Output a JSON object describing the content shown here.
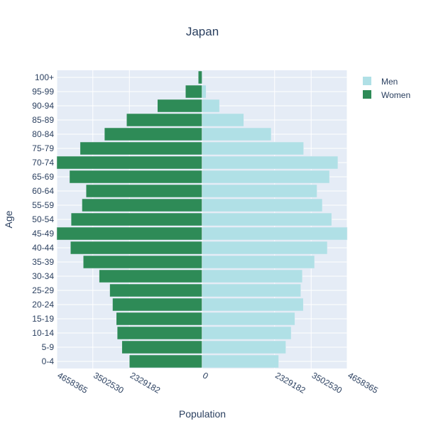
{
  "chart_data": {
    "type": "bar",
    "orientation": "horizontal",
    "title": "Japan",
    "xlabel": "Population",
    "ylabel": "Age",
    "categories": [
      "0-4",
      "5-9",
      "10-14",
      "15-19",
      "20-24",
      "25-29",
      "30-34",
      "35-39",
      "40-44",
      "45-49",
      "50-54",
      "55-59",
      "60-64",
      "65-69",
      "70-74",
      "75-79",
      "80-84",
      "85-89",
      "90-94",
      "95-99",
      "100+"
    ],
    "series": [
      {
        "name": "Men",
        "color": "#b0e0e6",
        "values": [
          2460000,
          2690000,
          2860000,
          2980000,
          3250000,
          3170000,
          3220000,
          3610000,
          4020000,
          4658365,
          4160000,
          3860000,
          3690000,
          4090000,
          4360000,
          3260000,
          2220000,
          1340000,
          560000,
          130000,
          20000
        ]
      },
      {
        "name": "Women",
        "color": "#2e8b57",
        "values": [
          -2330000,
          -2570000,
          -2720000,
          -2750000,
          -2870000,
          -2960000,
          -3300000,
          -3810000,
          -4220000,
          -4658365,
          -4200000,
          -3850000,
          -3720000,
          -4250000,
          -4658365,
          -3910000,
          -3130000,
          -2420000,
          -1430000,
          -530000,
          -120000
        ]
      }
    ],
    "xlim": [
      -4658365,
      4658365
    ],
    "xticks": [
      {
        "value": -4658365,
        "label": "4658365"
      },
      {
        "value": -3502530,
        "label": "3502530"
      },
      {
        "value": -2329182,
        "label": "2329182"
      },
      {
        "value": 0,
        "label": "0"
      },
      {
        "value": 2329182,
        "label": "2329182"
      },
      {
        "value": 3502530,
        "label": "3502530"
      },
      {
        "value": 4658365,
        "label": "4658365"
      }
    ],
    "barmode": "overlay",
    "grid": true,
    "legend_position": "top-right",
    "background_color": "#e5ecf6"
  }
}
